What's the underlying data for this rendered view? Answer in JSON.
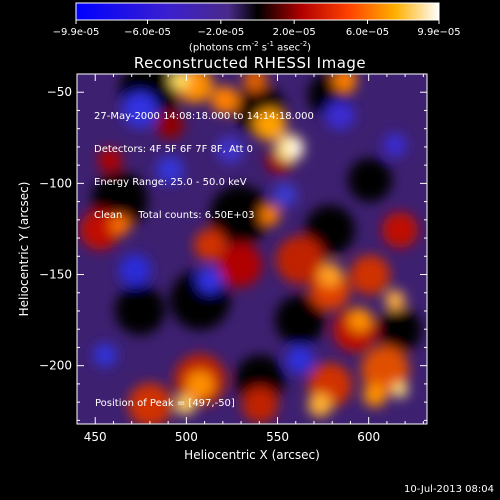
{
  "colorbar": {
    "ticks": [
      "-9.9e-05",
      "-6.0e-05",
      "-2.0e-05",
      "2.0e-05",
      "6.0e-05",
      "9.9e-05"
    ],
    "tick_values": [
      -9.9e-05,
      -6e-05,
      -2e-05,
      2e-05,
      6e-05,
      9.9e-05
    ],
    "range": [
      -9.9e-05,
      9.9e-05
    ],
    "units_text": "(photons cm",
    "units_exp1": "-2",
    "units_mid": " s",
    "units_exp2": "-1",
    "units_end": " asec",
    "units_exp3": "-2",
    "units_close": ")"
  },
  "chart_data": {
    "type": "heatmap",
    "title": "Reconstructed RHESSI Image",
    "xlabel": "Heliocentric X (arcsec)",
    "ylabel": "Heliocentric Y (arcsec)",
    "xlim": [
      440,
      632
    ],
    "ylim": [
      -232,
      -40
    ],
    "x_ticks": [
      450,
      500,
      550,
      600
    ],
    "y_ticks": [
      -50,
      -100,
      -150,
      -200
    ],
    "x_tick_labels": [
      "450",
      "500",
      "550",
      "600"
    ],
    "y_tick_labels": [
      "-50",
      "-100",
      "-150",
      "-200"
    ],
    "peak": [
      497,
      -50
    ],
    "annotations": {
      "line1": "27-May-2000 14:08:18.000 to 14:14:18.000",
      "line2": "Detectors: 4F 5F 6F 7F 8F, Att 0",
      "line3": "Energy Range: 25.0 - 50.0 keV",
      "line4": "Clean     Total counts: 6.50E+03",
      "peak_text": "Position of Peak = [497,-50]"
    }
  },
  "footer": {
    "timestamp": "10-Jul-2013 08:04"
  }
}
